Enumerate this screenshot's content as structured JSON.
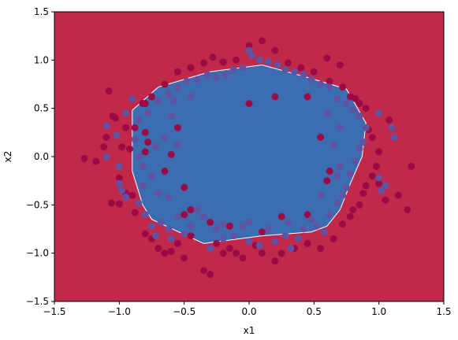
{
  "chart_data": {
    "type": "scatter",
    "title": "",
    "xlabel": "x1",
    "ylabel": "x2",
    "xlim": [
      -1.5,
      1.5
    ],
    "ylim": [
      -1.5,
      1.5
    ],
    "xticks": [
      -1.5,
      -1.0,
      -0.5,
      0.0,
      0.5,
      1.0,
      1.5
    ],
    "yticks": [
      -1.5,
      -1.0,
      -0.5,
      0.0,
      0.5,
      1.0,
      1.5
    ],
    "xtick_labels": [
      "−1.5",
      "−1.0",
      "−0.5",
      "0.0",
      "0.5",
      "1.0",
      "1.5"
    ],
    "ytick_labels": [
      "−1.5",
      "−1.0",
      "−0.5",
      "0.0",
      "0.5",
      "1.0",
      "1.5"
    ],
    "grid": false,
    "background_color": "#c0294a",
    "decision_region": {
      "color": "#3a6eb0",
      "boundary_color": "#ffffff",
      "polygon": [
        [
          -0.9,
          0.48
        ],
        [
          -0.7,
          0.72
        ],
        [
          -0.3,
          0.88
        ],
        [
          0.1,
          0.95
        ],
        [
          0.45,
          0.82
        ],
        [
          0.75,
          0.7
        ],
        [
          0.9,
          0.35
        ],
        [
          0.87,
          0.0
        ],
        [
          0.78,
          -0.28
        ],
        [
          0.7,
          -0.55
        ],
        [
          0.6,
          -0.72
        ],
        [
          0.48,
          -0.78
        ],
        [
          0.1,
          -0.82
        ],
        [
          -0.35,
          -0.9
        ],
        [
          -0.75,
          -0.65
        ],
        [
          -0.82,
          -0.5
        ],
        [
          -0.9,
          -0.15
        ]
      ]
    },
    "series": [
      {
        "color": "#9b0a44",
        "points": [
          [
            -1.27,
            -0.02
          ],
          [
            -1.18,
            -0.05
          ],
          [
            -1.08,
            0.68
          ],
          [
            -1.05,
            0.42
          ],
          [
            -1.03,
            0.4
          ],
          [
            -1.0,
            -0.49
          ],
          [
            -1.06,
            -0.48
          ],
          [
            -1.1,
            0.2
          ],
          [
            -1.12,
            0.1
          ],
          [
            -0.98,
            0.1
          ],
          [
            -0.92,
            0.08
          ],
          [
            -0.95,
            0.3
          ],
          [
            -0.9,
            -0.4
          ],
          [
            -0.88,
            -0.58
          ],
          [
            -0.8,
            -0.8
          ],
          [
            -0.75,
            -0.85
          ],
          [
            -0.7,
            -0.95
          ],
          [
            -0.65,
            -1.0
          ],
          [
            -0.6,
            -0.98
          ],
          [
            -0.55,
            -0.9
          ],
          [
            -0.5,
            -1.05
          ],
          [
            -0.45,
            -0.82
          ],
          [
            -0.35,
            -1.18
          ],
          [
            -0.3,
            -1.22
          ],
          [
            -0.25,
            -0.9
          ],
          [
            -0.2,
            -1.0
          ],
          [
            -0.15,
            -0.95
          ],
          [
            -0.1,
            -1.0
          ],
          [
            -0.05,
            -1.05
          ],
          [
            0.05,
            -0.92
          ],
          [
            0.1,
            -1.0
          ],
          [
            0.2,
            -1.08
          ],
          [
            0.25,
            -1.0
          ],
          [
            0.35,
            -0.95
          ],
          [
            0.45,
            -0.9
          ],
          [
            0.55,
            -0.95
          ],
          [
            0.65,
            -0.85
          ],
          [
            0.72,
            -0.7
          ],
          [
            0.78,
            -0.62
          ],
          [
            0.8,
            -0.55
          ],
          [
            0.85,
            -0.5
          ],
          [
            0.88,
            -0.38
          ],
          [
            0.9,
            -0.3
          ],
          [
            0.95,
            -0.2
          ],
          [
            0.98,
            -0.1
          ],
          [
            1.0,
            0.05
          ],
          [
            0.95,
            0.2
          ],
          [
            0.92,
            0.28
          ],
          [
            0.9,
            0.5
          ],
          [
            0.85,
            0.55
          ],
          [
            0.82,
            0.6
          ],
          [
            0.78,
            0.62
          ],
          [
            0.72,
            0.72
          ],
          [
            0.62,
            0.78
          ],
          [
            0.5,
            0.88
          ],
          [
            0.4,
            0.92
          ],
          [
            0.3,
            0.97
          ],
          [
            0.2,
            1.1
          ],
          [
            0.1,
            1.2
          ],
          [
            0.0,
            1.15
          ],
          [
            -0.1,
            1.0
          ],
          [
            -0.2,
            0.98
          ],
          [
            -0.28,
            1.03
          ],
          [
            -0.35,
            0.97
          ],
          [
            -0.45,
            0.92
          ],
          [
            -0.55,
            0.88
          ],
          [
            -0.65,
            0.75
          ],
          [
            -0.75,
            0.62
          ],
          [
            -0.82,
            0.55
          ],
          [
            -0.88,
            0.3
          ],
          [
            -0.8,
            0.25
          ],
          [
            -0.78,
            0.15
          ],
          [
            -0.8,
            0.05
          ],
          [
            -0.65,
            -0.15
          ],
          [
            -0.5,
            -0.6
          ],
          [
            -0.45,
            -0.55
          ],
          [
            0.0,
            0.55
          ],
          [
            0.2,
            0.62
          ],
          [
            0.45,
            0.62
          ],
          [
            0.55,
            0.2
          ],
          [
            0.62,
            -0.15
          ],
          [
            0.6,
            -0.25
          ],
          [
            0.45,
            -0.6
          ],
          [
            0.25,
            -0.62
          ],
          [
            0.1,
            -0.78
          ],
          [
            -0.15,
            -0.72
          ],
          [
            -0.3,
            -0.68
          ],
          [
            -0.5,
            -0.32
          ],
          [
            -0.6,
            0.02
          ],
          [
            -0.55,
            0.3
          ],
          [
            1.08,
            0.38
          ],
          [
            1.15,
            -0.4
          ],
          [
            1.22,
            -0.55
          ],
          [
            1.25,
            -0.1
          ],
          [
            1.05,
            -0.45
          ],
          [
            1.0,
            -0.28
          ],
          [
            0.6,
            1.02
          ],
          [
            0.7,
            0.95
          ],
          [
            -0.8,
            0.55
          ],
          [
            -0.95,
            -0.38
          ],
          [
            -1.0,
            -0.22
          ]
        ]
      },
      {
        "color": "#6153a1",
        "points": [
          [
            -1.1,
            0.32
          ],
          [
            -1.02,
            0.22
          ],
          [
            -1.0,
            -0.28
          ],
          [
            -0.98,
            -0.35
          ],
          [
            -0.95,
            -0.42
          ],
          [
            -0.85,
            -0.48
          ],
          [
            -0.82,
            -0.3
          ],
          [
            -0.8,
            -0.6
          ],
          [
            -0.75,
            -0.72
          ],
          [
            -0.72,
            -0.82
          ],
          [
            -0.68,
            -0.68
          ],
          [
            -0.62,
            -0.75
          ],
          [
            -0.6,
            -0.85
          ],
          [
            -0.55,
            -0.62
          ],
          [
            -0.5,
            -0.8
          ],
          [
            -0.45,
            -0.72
          ],
          [
            -0.4,
            -0.55
          ],
          [
            -0.35,
            -0.62
          ],
          [
            -0.3,
            -0.95
          ],
          [
            -0.25,
            -0.75
          ],
          [
            -0.2,
            -0.85
          ],
          [
            -0.12,
            -0.82
          ],
          [
            -0.05,
            -0.72
          ],
          [
            0.0,
            -0.88
          ],
          [
            0.08,
            -0.92
          ],
          [
            0.15,
            -0.75
          ],
          [
            0.2,
            -0.88
          ],
          [
            0.28,
            -0.82
          ],
          [
            0.32,
            -0.95
          ],
          [
            0.38,
            -0.85
          ],
          [
            0.42,
            -0.75
          ],
          [
            0.48,
            -0.65
          ],
          [
            0.52,
            -0.72
          ],
          [
            0.58,
            -0.78
          ],
          [
            0.62,
            -0.6
          ],
          [
            0.68,
            -0.48
          ],
          [
            0.72,
            -0.4
          ],
          [
            0.75,
            -0.32
          ],
          [
            0.78,
            -0.18
          ],
          [
            0.82,
            -0.05
          ],
          [
            0.85,
            0.08
          ],
          [
            0.88,
            0.15
          ],
          [
            0.9,
            0.3
          ],
          [
            0.85,
            0.42
          ],
          [
            0.8,
            0.48
          ],
          [
            0.75,
            0.55
          ],
          [
            0.68,
            0.6
          ],
          [
            0.62,
            0.72
          ],
          [
            0.55,
            0.75
          ],
          [
            0.48,
            0.8
          ],
          [
            0.42,
            0.85
          ],
          [
            0.35,
            0.88
          ],
          [
            0.28,
            0.9
          ],
          [
            0.22,
            0.95
          ],
          [
            0.15,
            0.98
          ],
          [
            0.08,
            1.0
          ],
          [
            0.02,
            1.05
          ],
          [
            -0.05,
            0.92
          ],
          [
            -0.12,
            0.9
          ],
          [
            -0.18,
            0.85
          ],
          [
            -0.25,
            0.82
          ],
          [
            -0.32,
            0.85
          ],
          [
            -0.4,
            0.8
          ],
          [
            -0.48,
            0.78
          ],
          [
            -0.55,
            0.72
          ],
          [
            -0.62,
            0.65
          ],
          [
            -0.7,
            0.58
          ],
          [
            -0.78,
            0.45
          ],
          [
            -0.85,
            0.38
          ],
          [
            -0.88,
            0.18
          ],
          [
            -0.85,
            0.0
          ],
          [
            -0.82,
            -0.1
          ],
          [
            -0.75,
            -0.2
          ],
          [
            -0.7,
            -0.38
          ],
          [
            -0.62,
            -0.42
          ],
          [
            -0.58,
            0.58
          ],
          [
            -0.45,
            0.62
          ],
          [
            -0.6,
            0.42
          ],
          [
            -0.55,
            0.12
          ],
          [
            -0.65,
            0.2
          ],
          [
            -0.72,
            0.1
          ],
          [
            0.6,
            0.45
          ],
          [
            0.7,
            0.3
          ],
          [
            0.65,
            0.12
          ],
          [
            0.7,
            -0.1
          ],
          [
            0.68,
            -0.2
          ],
          [
            0.55,
            -0.4
          ],
          [
            0.3,
            -0.68
          ],
          [
            0.0,
            -0.68
          ],
          [
            -0.2,
            -0.7
          ],
          [
            1.1,
            0.3
          ],
          [
            1.12,
            0.2
          ],
          [
            1.0,
            0.45
          ],
          [
            1.05,
            -0.3
          ],
          [
            1.02,
            -0.35
          ],
          [
            1.0,
            -0.22
          ],
          [
            -1.1,
            0.0
          ],
          [
            -1.0,
            -0.1
          ],
          [
            -0.95,
            0.45
          ],
          [
            -0.9,
            0.6
          ],
          [
            0.0,
            1.1
          ]
        ]
      }
    ]
  }
}
